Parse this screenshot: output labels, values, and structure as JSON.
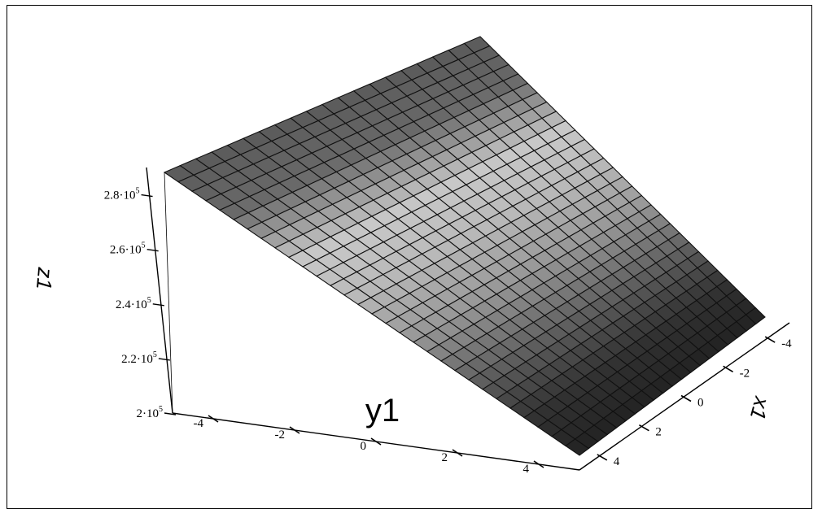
{
  "chart_data": {
    "type": "surface",
    "title": "",
    "xlabel": "x1",
    "ylabel": "y1",
    "zlabel": "z1",
    "x_range": [
      -5,
      5
    ],
    "y_range": [
      -5,
      5
    ],
    "z_range": [
      200000,
      290000
    ],
    "x_ticks": [
      "-4",
      "-2",
      "0",
      "2",
      "4"
    ],
    "y_ticks": [
      "-4",
      "-2",
      "0",
      "2",
      "4"
    ],
    "z_ticks": [
      {
        "base": "2·10",
        "exp": "5"
      },
      {
        "base": "2.2·10",
        "exp": "5"
      },
      {
        "base": "2.4·10",
        "exp": "5"
      },
      {
        "base": "2.6·10",
        "exp": "5"
      },
      {
        "base": "2.8·10",
        "exp": "5"
      }
    ],
    "surface_z_corners": {
      "x_-5_y_-5": 290000,
      "x_5_y_-5": 290000,
      "x_-5_y_5": 200000,
      "x_5_y_5": 200000
    },
    "colormap": "grayscale",
    "grid": true
  }
}
